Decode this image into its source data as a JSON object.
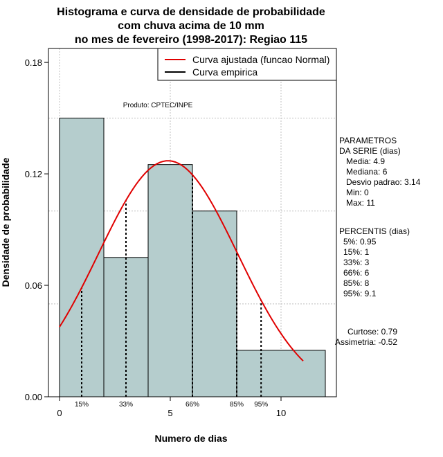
{
  "chart_data": {
    "type": "histogram",
    "title": [
      "Histograma e curva de densidade de probabilidade",
      "com chuva acima de 10 mm",
      "no mes de fevereiro (1998-2017): Regiao 115"
    ],
    "xlabel": "Numero de dias",
    "ylabel": "Densidade de probabilidade",
    "xlim": [
      -0.5,
      12.5
    ],
    "ylim": [
      0,
      0.1875
    ],
    "x_ticks": [
      0,
      5,
      10
    ],
    "y_ticks": [
      0.0,
      0.06,
      0.12,
      0.18
    ],
    "y_tick_labels": [
      "0.00",
      "0.06",
      "0.12",
      "0.18"
    ],
    "grid_y": [
      0.0,
      0.05,
      0.1,
      0.15
    ],
    "grid_x": [
      0,
      5,
      10
    ],
    "bins": [
      {
        "x0": 0,
        "x1": 2,
        "density": 0.15
      },
      {
        "x0": 2,
        "x1": 4,
        "density": 0.075
      },
      {
        "x0": 4,
        "x1": 6,
        "density": 0.125
      },
      {
        "x0": 6,
        "x1": 8,
        "density": 0.1
      },
      {
        "x0": 8,
        "x1": 12,
        "density": 0.025
      }
    ],
    "bar_fill": "#b5cdcd",
    "normal_curve": {
      "mean": 4.9,
      "sd": 3.14,
      "x_from": 0,
      "x_to": 11,
      "color": "#e00000"
    },
    "percentile_lines": [
      {
        "label": "15%",
        "x": 1
      },
      {
        "label": "33%",
        "x": 3
      },
      {
        "label": "66%",
        "x": 6
      },
      {
        "label": "85%",
        "x": 8
      },
      {
        "label": "95%",
        "x": 9.1
      }
    ],
    "annotation": "Produto: CPTEC/INPE",
    "legend": {
      "position": "top-right",
      "entries": [
        {
          "label": "Curva ajustada (funcao Normal)",
          "color": "#e00000"
        },
        {
          "label": "Curva empirica",
          "color": "#000000"
        }
      ]
    },
    "side_panel": {
      "parametros": [
        "PARAMETROS",
        "DA SERIE (dias)",
        "Media: 4.9",
        "Mediana: 6",
        "Desvio padrao: 3.14",
        "Min: 0",
        "Max: 11"
      ],
      "percentis": [
        "PERCENTIS (dias)",
        "5%: 0.95",
        "15%: 1",
        "33%: 3",
        "66%: 6",
        "85%: 8",
        "95%: 9.1"
      ],
      "shape": [
        "Curtose: 0.79",
        "Assimetria: -0.52"
      ]
    }
  }
}
